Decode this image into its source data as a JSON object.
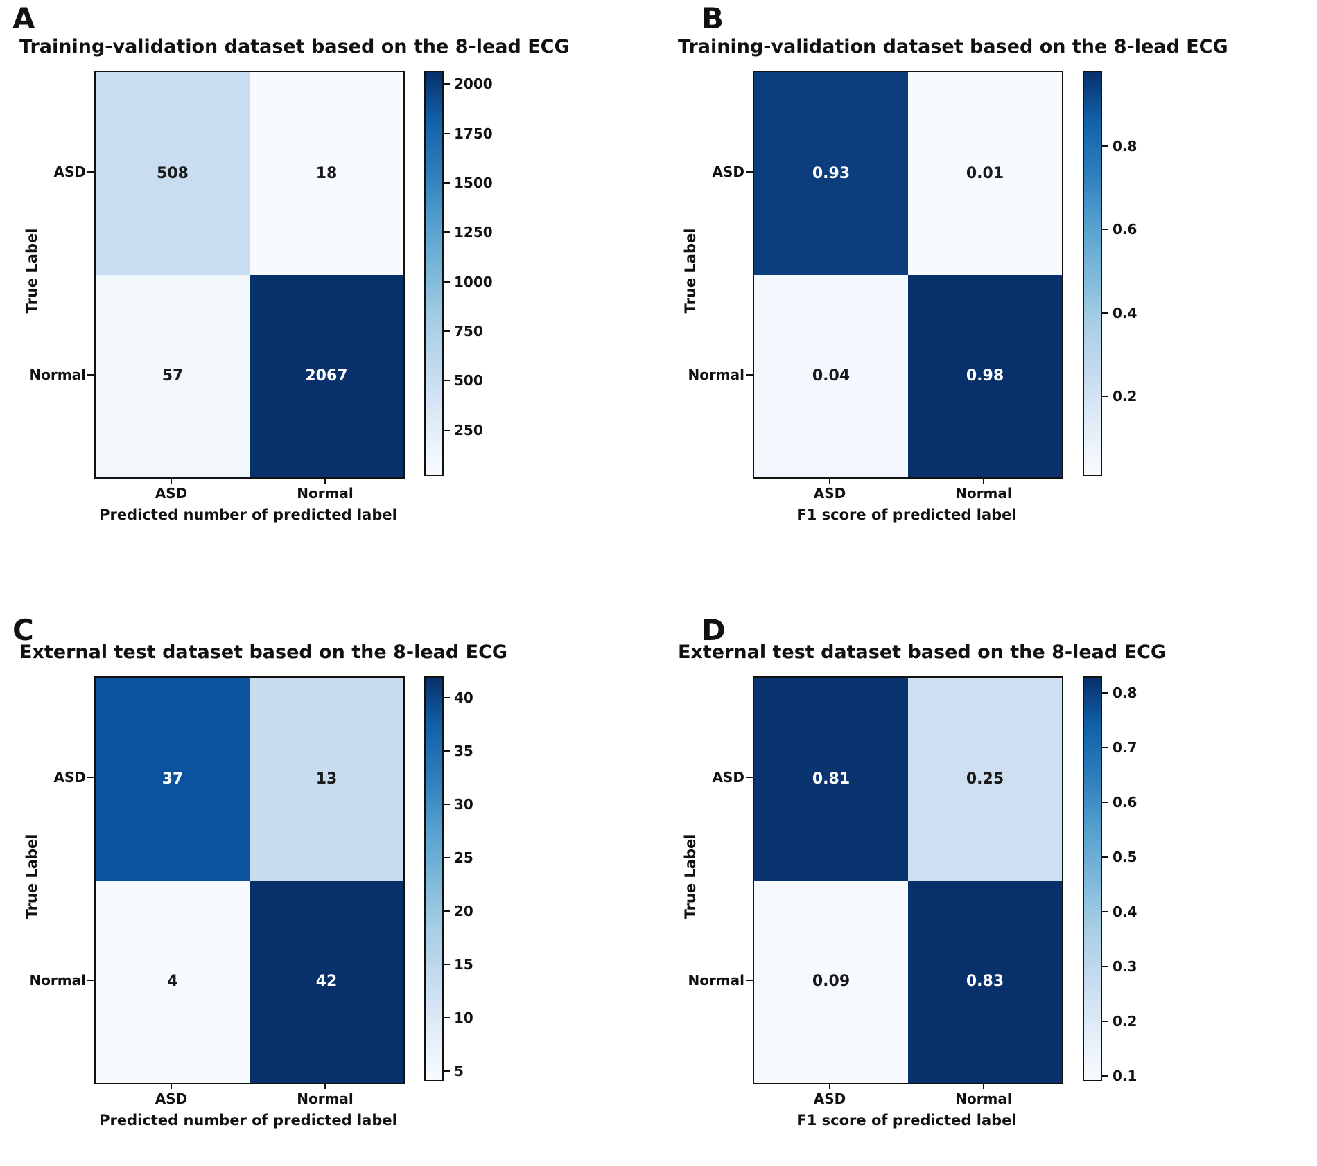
{
  "panels": [
    {
      "letter": "A",
      "title": "Training-validation dataset based on the 8-lead ECG",
      "xlabel": "Predicted number of predicted label",
      "ylabel": "True Label",
      "row_labels": [
        "ASD",
        "Normal"
      ],
      "col_labels": [
        "ASD",
        "Normal"
      ],
      "cells": [
        {
          "value": "508",
          "bg": "#c8ddf0",
          "fg": "#1a1a1a"
        },
        {
          "value": "18",
          "bg": "#f7fbff",
          "fg": "#1a1a1a"
        },
        {
          "value": "57",
          "bg": "#f3f8fd",
          "fg": "#1a1a1a"
        },
        {
          "value": "2067",
          "bg": "#08306b",
          "fg": "#ffffff"
        }
      ],
      "colorbar": {
        "vmin": 18,
        "vmax": 2067,
        "ticks": [
          250,
          500,
          750,
          1000,
          1250,
          1500,
          1750,
          2000
        ],
        "tick_labels": [
          "250",
          "500",
          "750",
          "1000",
          "1250",
          "1500",
          "1750",
          "2000"
        ]
      }
    },
    {
      "letter": "B",
      "title": "Training-validation dataset based on the 8-lead ECG",
      "xlabel": "F1 score of predicted label",
      "ylabel": "True Label",
      "row_labels": [
        "ASD",
        "Normal"
      ],
      "col_labels": [
        "ASD",
        "Normal"
      ],
      "cells": [
        {
          "value": "0.93",
          "bg": "#0c3d7c",
          "fg": "#ffffff"
        },
        {
          "value": "0.01",
          "bg": "#f7fbff",
          "fg": "#1a1a1a"
        },
        {
          "value": "0.04",
          "bg": "#f2f8fd",
          "fg": "#1a1a1a"
        },
        {
          "value": "0.98",
          "bg": "#08306b",
          "fg": "#ffffff"
        }
      ],
      "colorbar": {
        "vmin": 0.01,
        "vmax": 0.98,
        "ticks": [
          0.2,
          0.4,
          0.6,
          0.8
        ],
        "tick_labels": [
          "0.2",
          "0.4",
          "0.6",
          "0.8"
        ]
      }
    },
    {
      "letter": "C",
      "title": "External test dataset based on the 8-lead ECG",
      "xlabel": "Predicted number of predicted label",
      "ylabel": "True Label",
      "row_labels": [
        "ASD",
        "Normal"
      ],
      "col_labels": [
        "ASD",
        "Normal"
      ],
      "cells": [
        {
          "value": "37",
          "bg": "#0b539f",
          "fg": "#ffffff"
        },
        {
          "value": "13",
          "bg": "#c8dcf0",
          "fg": "#1a1a1a"
        },
        {
          "value": "4",
          "bg": "#f7fbff",
          "fg": "#1a1a1a"
        },
        {
          "value": "42",
          "bg": "#08306b",
          "fg": "#ffffff"
        }
      ],
      "colorbar": {
        "vmin": 4,
        "vmax": 42,
        "ticks": [
          5,
          10,
          15,
          20,
          25,
          30,
          35,
          40
        ],
        "tick_labels": [
          "5",
          "10",
          "15",
          "20",
          "25",
          "30",
          "35",
          "40"
        ]
      }
    },
    {
      "letter": "D",
      "title": "External test dataset based on the 8-lead ECG",
      "xlabel": "F1 score of predicted label",
      "ylabel": "True Label",
      "row_labels": [
        "ASD",
        "Normal"
      ],
      "col_labels": [
        "ASD",
        "Normal"
      ],
      "cells": [
        {
          "value": "0.81",
          "bg": "#0a3470",
          "fg": "#ffffff"
        },
        {
          "value": "0.25",
          "bg": "#cddff1",
          "fg": "#1a1a1a"
        },
        {
          "value": "0.09",
          "bg": "#f6fafe",
          "fg": "#1a1a1a"
        },
        {
          "value": "0.83",
          "bg": "#08306b",
          "fg": "#ffffff"
        }
      ],
      "colorbar": {
        "vmin": 0.09,
        "vmax": 0.83,
        "ticks": [
          0.1,
          0.2,
          0.3,
          0.4,
          0.5,
          0.6,
          0.7,
          0.8
        ],
        "tick_labels": [
          "0.1",
          "0.2",
          "0.3",
          "0.4",
          "0.5",
          "0.6",
          "0.7",
          "0.8"
        ]
      }
    }
  ],
  "chart_data": [
    {
      "type": "heatmap",
      "subtype": "confusion-matrix",
      "panel": "A",
      "title": "Training-validation dataset based on the 8-lead ECG",
      "xlabel": "Predicted number of predicted label",
      "ylabel": "True Label",
      "x_categories": [
        "ASD",
        "Normal"
      ],
      "y_categories": [
        "ASD",
        "Normal"
      ],
      "values": [
        [
          508,
          18
        ],
        [
          57,
          2067
        ]
      ],
      "colormap": "Blues",
      "colorbar_ticks": [
        250,
        500,
        750,
        1000,
        1250,
        1500,
        1750,
        2000
      ],
      "colorbar_position": "right"
    },
    {
      "type": "heatmap",
      "subtype": "confusion-matrix",
      "panel": "B",
      "title": "Training-validation dataset based on the 8-lead ECG",
      "xlabel": "F1 score of predicted label",
      "ylabel": "True Label",
      "x_categories": [
        "ASD",
        "Normal"
      ],
      "y_categories": [
        "ASD",
        "Normal"
      ],
      "values": [
        [
          0.93,
          0.01
        ],
        [
          0.04,
          0.98
        ]
      ],
      "colormap": "Blues",
      "colorbar_ticks": [
        0.2,
        0.4,
        0.6,
        0.8
      ],
      "colorbar_position": "right"
    },
    {
      "type": "heatmap",
      "subtype": "confusion-matrix",
      "panel": "C",
      "title": "External test dataset based on the 8-lead ECG",
      "xlabel": "Predicted number of predicted label",
      "ylabel": "True Label",
      "x_categories": [
        "ASD",
        "Normal"
      ],
      "y_categories": [
        "ASD",
        "Normal"
      ],
      "values": [
        [
          37,
          13
        ],
        [
          4,
          42
        ]
      ],
      "colormap": "Blues",
      "colorbar_ticks": [
        5,
        10,
        15,
        20,
        25,
        30,
        35,
        40
      ],
      "colorbar_position": "right"
    },
    {
      "type": "heatmap",
      "subtype": "confusion-matrix",
      "panel": "D",
      "title": "External test dataset based on the 8-lead ECG",
      "xlabel": "F1 score of predicted label",
      "ylabel": "True Label",
      "x_categories": [
        "ASD",
        "Normal"
      ],
      "y_categories": [
        "ASD",
        "Normal"
      ],
      "values": [
        [
          0.81,
          0.25
        ],
        [
          0.09,
          0.83
        ]
      ],
      "colormap": "Blues",
      "colorbar_ticks": [
        0.1,
        0.2,
        0.3,
        0.4,
        0.5,
        0.6,
        0.7,
        0.8
      ],
      "colorbar_position": "right"
    }
  ]
}
